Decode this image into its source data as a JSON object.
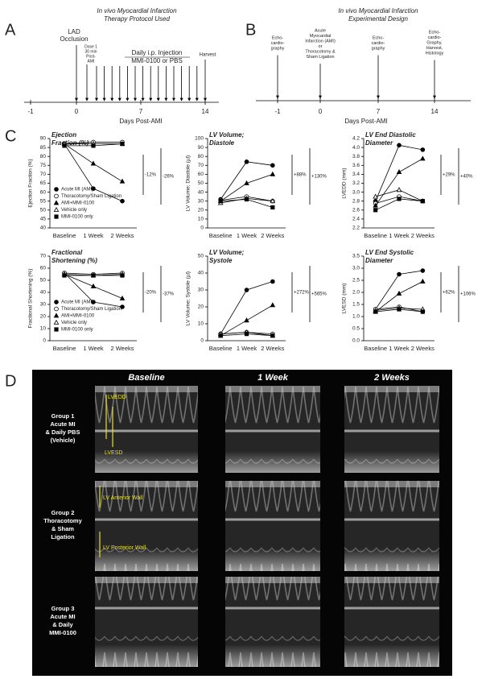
{
  "panel_a": {
    "label": "A",
    "title": [
      "In vivo Myocardial Infarction",
      "Therapy Protocol Used"
    ],
    "occlusion": [
      "LAD",
      "Occlusion"
    ],
    "dose": [
      "Dose 1",
      "30 min",
      "Post-",
      "AMI"
    ],
    "injection": [
      "Daily i.p. Injection",
      "MMI-0100 or PBS"
    ],
    "harvest": "Harvest",
    "ticks": [
      "-1",
      "0",
      "7",
      "14"
    ],
    "axis_label": "Days Post-AMI"
  },
  "panel_b": {
    "label": "B",
    "title": [
      "In vivo Myocardial Infarction",
      "Experimental Design"
    ],
    "events": [
      [
        "Echo-",
        "cardio-",
        "graphy"
      ],
      [
        "Acute",
        "Myocardial",
        "Infarction (AMI)",
        "or",
        "Thoracotomy &",
        "Sham Ligation"
      ],
      [
        "Echo-",
        "cardio-",
        "graphy"
      ],
      [
        "Echo-",
        "cardio-",
        "Graphy,",
        "Harvest,",
        "Histology"
      ]
    ],
    "ticks": [
      "-1",
      "0",
      "7",
      "14"
    ],
    "axis_label": "Days Post-AMI"
  },
  "panel_c_label": "C",
  "chart_data": [
    {
      "type": "line",
      "title": [
        "Ejection",
        "Fraction (%)"
      ],
      "y_label": "Ejection Fraction (%)",
      "categories": [
        "Baseline",
        "1 Week",
        "2 Weeks"
      ],
      "ylim": [
        40,
        90
      ],
      "yticks": [
        40,
        45,
        50,
        55,
        60,
        65,
        70,
        75,
        80,
        85,
        90
      ],
      "legend": true,
      "annotations": [
        "-12%",
        "-26%"
      ],
      "series": [
        {
          "name": "Acute MI (AMI)",
          "marker": "circle",
          "filled": true,
          "color": "#000000",
          "values": [
            87,
            62,
            55
          ]
        },
        {
          "name": "Thoracotomy/Sham Ligation",
          "marker": "circle",
          "filled": false,
          "color": "#000000",
          "values": [
            87,
            88,
            88
          ]
        },
        {
          "name": "AMI+MMI-0100",
          "marker": "triangle",
          "filled": true,
          "color": "#000000",
          "values": [
            87,
            76,
            66
          ]
        },
        {
          "name": "Vehicle only",
          "marker": "triangle",
          "filled": false,
          "color": "#000000",
          "values": [
            87,
            87,
            87
          ]
        },
        {
          "name": "MMI-0100 only",
          "marker": "square",
          "filled": true,
          "color": "#000000",
          "values": [
            86,
            86,
            87
          ]
        }
      ]
    },
    {
      "type": "line",
      "title": [
        "LV Volume;",
        "Diastole"
      ],
      "y_label": "LV Volume; Diastole (µl)",
      "categories": [
        "Baseline",
        "1 Week",
        "2 Weeks"
      ],
      "ylim": [
        0,
        100
      ],
      "yticks": [
        0,
        10,
        20,
        30,
        40,
        50,
        60,
        70,
        80,
        90,
        100
      ],
      "legend": false,
      "annotations": [
        "+88%",
        "+130%"
      ],
      "series": [
        {
          "marker": "circle",
          "filled": true,
          "color": "#000000",
          "values": [
            32,
            74,
            70
          ]
        },
        {
          "marker": "circle",
          "filled": false,
          "color": "#000000",
          "values": [
            31,
            35,
            30
          ]
        },
        {
          "marker": "triangle",
          "filled": true,
          "color": "#000000",
          "values": [
            30,
            50,
            60
          ]
        },
        {
          "marker": "triangle",
          "filled": false,
          "color": "#000000",
          "values": [
            28,
            33,
            30
          ]
        },
        {
          "marker": "square",
          "filled": true,
          "color": "#000000",
          "values": [
            30,
            32,
            23
          ]
        }
      ]
    },
    {
      "type": "line",
      "title": [
        "LV End Diastolic",
        "Diameter"
      ],
      "y_label": "LVEDD (mm)",
      "categories": [
        "Baseline",
        "1 Week",
        "2 Weeks"
      ],
      "ylim": [
        2.2,
        4.2
      ],
      "yticks": [
        2.2,
        2.4,
        2.6,
        2.8,
        {
          "value": 3,
          "label": "3.0"
        },
        3.2,
        3.4,
        3.6,
        3.8,
        {
          "value": 4,
          "label": "4.0"
        },
        4.2
      ],
      "legend": false,
      "annotations": [
        "+29%",
        "+40%"
      ],
      "series": [
        {
          "marker": "circle",
          "filled": true,
          "color": "#000000",
          "values": [
            2.8,
            4.05,
            3.95
          ]
        },
        {
          "marker": "circle",
          "filled": false,
          "color": "#000000",
          "values": [
            2.75,
            2.9,
            2.8
          ]
        },
        {
          "marker": "triangle",
          "filled": true,
          "color": "#000000",
          "values": [
            2.7,
            3.45,
            3.75
          ]
        },
        {
          "marker": "triangle",
          "filled": false,
          "color": "#000000",
          "values": [
            2.9,
            3.05,
            2.8
          ]
        },
        {
          "marker": "square",
          "filled": true,
          "color": "#000000",
          "values": [
            2.6,
            2.85,
            2.8
          ]
        }
      ]
    },
    {
      "type": "line",
      "title": [
        "Fractional",
        "Shortening (%)"
      ],
      "y_label": "Fractional Shortening (%)",
      "categories": [
        "Baseline",
        "1 Week",
        "2 Weeks"
      ],
      "ylim": [
        0,
        70
      ],
      "yticks": [
        0,
        10,
        20,
        30,
        40,
        50,
        60,
        70
      ],
      "legend": true,
      "annotations": [
        "-20%",
        "-37%"
      ],
      "series": [
        {
          "name": "Acute MI (AMI)",
          "marker": "circle",
          "filled": true,
          "color": "#000000",
          "values": [
            56,
            32,
            28
          ]
        },
        {
          "name": "Thoracotomy/Sham Ligation",
          "marker": "circle",
          "filled": false,
          "color": "#000000",
          "values": [
            56,
            55,
            56
          ]
        },
        {
          "name": "AMI+MMI-0100",
          "marker": "triangle",
          "filled": true,
          "color": "#000000",
          "values": [
            55,
            45,
            35
          ]
        },
        {
          "name": "Vehicle only",
          "marker": "triangle",
          "filled": false,
          "color": "#000000",
          "values": [
            55,
            54,
            55
          ]
        },
        {
          "name": "MMI-0100 only",
          "marker": "square",
          "filled": true,
          "color": "#000000",
          "values": [
            54,
            54,
            54
          ]
        }
      ]
    },
    {
      "type": "line",
      "title": [
        "LV Volume;",
        "Systole"
      ],
      "y_label": "LV Volume; Systole (µl)",
      "categories": [
        "Baseline",
        "1 Week",
        "2 Weeks"
      ],
      "ylim": [
        0,
        50
      ],
      "yticks": [
        0,
        10,
        20,
        30,
        40,
        50
      ],
      "legend": false,
      "annotations": [
        "+272%",
        "+565%"
      ],
      "series": [
        {
          "marker": "circle",
          "filled": true,
          "color": "#000000",
          "values": [
            4,
            30,
            35
          ]
        },
        {
          "marker": "circle",
          "filled": false,
          "color": "#000000",
          "values": [
            4,
            5,
            4
          ]
        },
        {
          "marker": "triangle",
          "filled": true,
          "color": "#000000",
          "values": [
            3,
            12,
            21
          ]
        },
        {
          "marker": "triangle",
          "filled": false,
          "color": "#000000",
          "values": [
            4,
            5,
            3
          ]
        },
        {
          "marker": "square",
          "filled": true,
          "color": "#000000",
          "values": [
            3,
            4,
            3
          ]
        }
      ]
    },
    {
      "type": "line",
      "title": [
        "LV End Systolic",
        "Diameter"
      ],
      "y_label": "LVESD (mm)",
      "categories": [
        "Baseline",
        "1 Week",
        "2 Weeks"
      ],
      "ylim": [
        0,
        3.5
      ],
      "yticks": [
        {
          "value": 0,
          "label": "0.0"
        },
        0.5,
        {
          "value": 1,
          "label": "1.0"
        },
        1.5,
        {
          "value": 2,
          "label": "2.0"
        },
        2.5,
        {
          "value": 3,
          "label": "3.0"
        },
        3.5
      ],
      "legend": false,
      "annotations": [
        "+62%",
        "+106%"
      ],
      "series": [
        {
          "marker": "circle",
          "filled": true,
          "color": "#000000",
          "values": [
            1.3,
            2.75,
            2.9
          ]
        },
        {
          "marker": "circle",
          "filled": false,
          "color": "#000000",
          "values": [
            1.3,
            1.4,
            1.2
          ]
        },
        {
          "marker": "triangle",
          "filled": true,
          "color": "#000000",
          "values": [
            1.2,
            1.95,
            2.45
          ]
        },
        {
          "marker": "triangle",
          "filled": false,
          "color": "#000000",
          "values": [
            1.25,
            1.35,
            1.3
          ]
        },
        {
          "marker": "square",
          "filled": true,
          "color": "#000000",
          "values": [
            1.2,
            1.3,
            1.2
          ]
        }
      ]
    }
  ],
  "panel_d": {
    "label": "D",
    "columns": [
      "Baseline",
      "1 Week",
      "2 Weeks"
    ],
    "rows": [
      [
        "Group 1",
        "Acute MI",
        "& Daily PBS",
        "(Vehicle)"
      ],
      [
        "Group 2",
        "Thoracotomy",
        "& Sham",
        "Ligation"
      ],
      [
        "Group 3",
        "Acute MI",
        "& Daily",
        "MMI-0100"
      ]
    ],
    "annotations": [
      "LVEDD",
      "LVESD",
      "LV Anterior Wall",
      "LV Posterior Wall"
    ]
  }
}
